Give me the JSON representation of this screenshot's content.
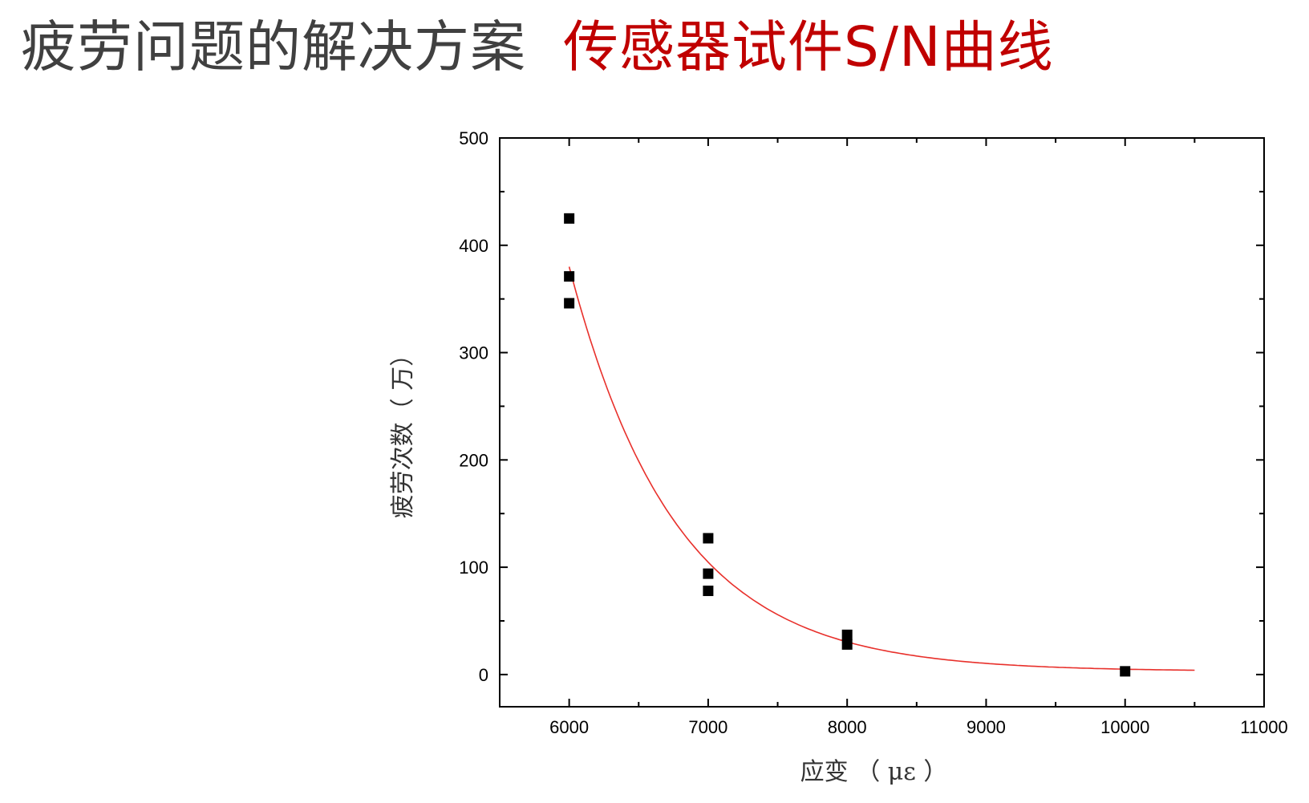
{
  "page": {
    "title_main": "疲劳问题的解决方案",
    "title_accent": "传感器试件S/N曲线"
  },
  "colors": {
    "title": "#404040",
    "accent": "#c00000",
    "fit_line": "#e8302b",
    "points": "#000000"
  },
  "chart_data": {
    "type": "scatter",
    "title": "",
    "xlabel": "应变 （ με ）",
    "ylabel": "疲劳次数（ 万）",
    "xlim": [
      5500,
      11000
    ],
    "ylim": [
      -30,
      500
    ],
    "xticks": [
      6000,
      7000,
      8000,
      9000,
      10000,
      11000
    ],
    "yticks": [
      0,
      100,
      200,
      300,
      400,
      500
    ],
    "grid": false,
    "series": [
      {
        "type": "scatter",
        "marker": "square",
        "points": [
          {
            "x": 6000,
            "y": 425
          },
          {
            "x": 6000,
            "y": 371
          },
          {
            "x": 6000,
            "y": 346
          },
          {
            "x": 7000,
            "y": 127
          },
          {
            "x": 7000,
            "y": 94
          },
          {
            "x": 7000,
            "y": 78
          },
          {
            "x": 8000,
            "y": 37
          },
          {
            "x": 8000,
            "y": 28
          },
          {
            "x": 10000,
            "y": 3
          }
        ]
      },
      {
        "type": "line",
        "curve": "exponential-fit",
        "x_range": [
          6000,
          10500
        ],
        "y0": 380,
        "decay_per_1000": 1.31,
        "asymptote": 3
      }
    ]
  }
}
